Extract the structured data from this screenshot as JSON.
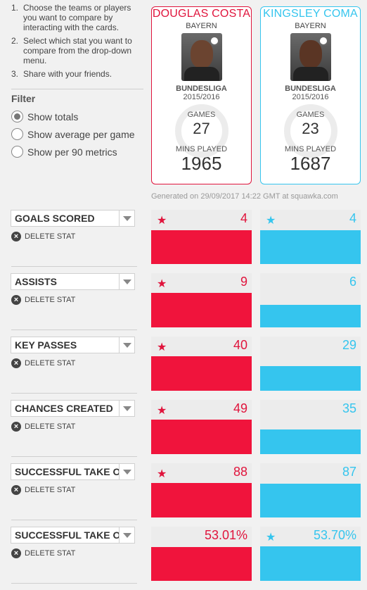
{
  "instructions": [
    {
      "num": "1.",
      "text": "Choose the teams or players you want to compare by interacting with the cards."
    },
    {
      "num": "2.",
      "text": "Select which stat you want to compare from the drop-down menu."
    },
    {
      "num": "3.",
      "text": "Share with your friends."
    }
  ],
  "filter": {
    "title": "Filter",
    "options": [
      {
        "label": "Show totals",
        "selected": true
      },
      {
        "label": "Show average per game",
        "selected": false
      },
      {
        "label": "Show per 90 metrics",
        "selected": false
      }
    ]
  },
  "players": {
    "left": {
      "name": "DOUGLAS COSTA",
      "team": "BAYERN",
      "league": "BUNDESLIGA",
      "season": "2015/2016",
      "games_label": "GAMES",
      "games": "27",
      "mins_label": "MINS PLAYED",
      "mins": "1965",
      "color": "#e0143c"
    },
    "right": {
      "name": "KINGSLEY COMA",
      "team": "BAYERN",
      "league": "BUNDESLIGA",
      "season": "2015/2016",
      "games_label": "GAMES",
      "games": "23",
      "mins_label": "MINS PLAYED",
      "mins": "1687",
      "color": "#35c5ee"
    }
  },
  "generated": "Generated on 29/09/2017 14:22 GMT at squawka.com",
  "delete_label": "DELETE STAT",
  "stats": [
    {
      "name": "GOALS SCORED",
      "left": "4",
      "right": "4",
      "left_fill": 0.62,
      "right_fill": 0.62,
      "left_star": true,
      "right_star": true
    },
    {
      "name": "ASSISTS",
      "left": "9",
      "right": "6",
      "left_fill": 0.64,
      "right_fill": 0.42,
      "left_star": true,
      "right_star": false
    },
    {
      "name": "KEY PASSES",
      "left": "40",
      "right": "29",
      "left_fill": 0.64,
      "right_fill": 0.46,
      "left_star": true,
      "right_star": false
    },
    {
      "name": "CHANCES CREATED",
      "left": "49",
      "right": "35",
      "left_fill": 0.64,
      "right_fill": 0.45,
      "left_star": true,
      "right_star": false
    },
    {
      "name": "SUCCESSFUL TAKE O",
      "left": "88",
      "right": "87",
      "left_fill": 0.64,
      "right_fill": 0.63,
      "left_star": true,
      "right_star": false
    },
    {
      "name": "SUCCESSFUL TAKE O",
      "left": "53.01%",
      "right": "53.70%",
      "left_fill": 0.63,
      "right_fill": 0.64,
      "left_star": false,
      "right_star": true
    }
  ]
}
